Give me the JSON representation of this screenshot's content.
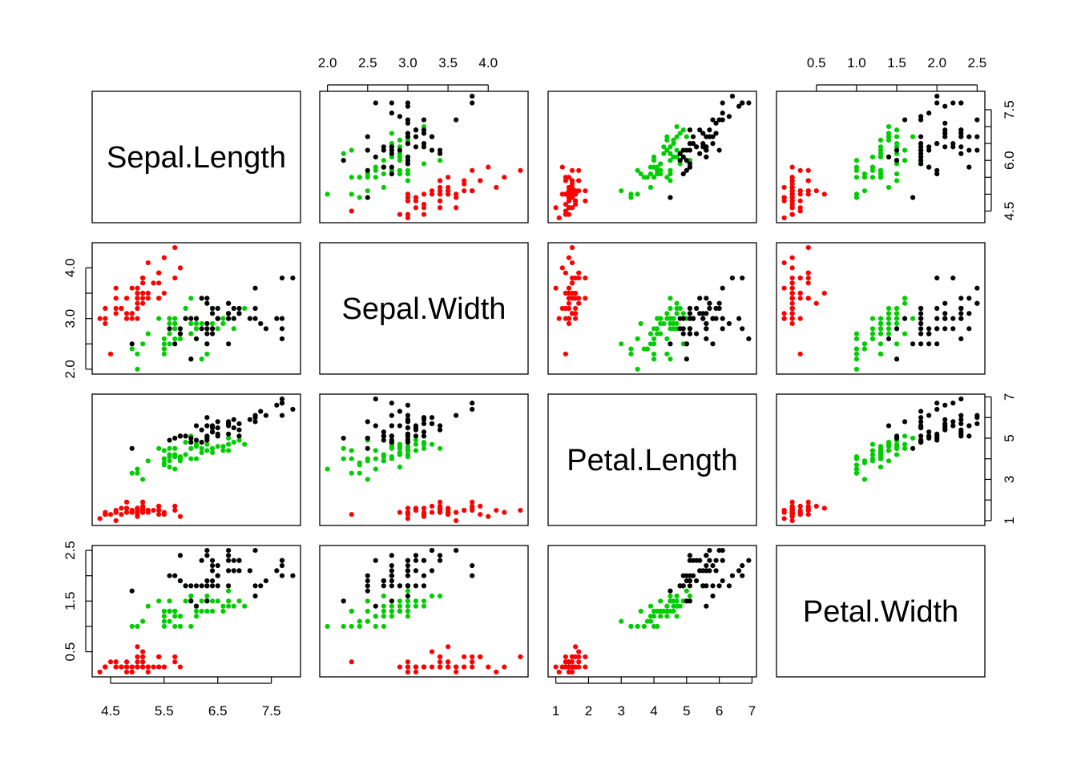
{
  "chart_data": {
    "type": "scatter",
    "subtype": "scatterplot-matrix",
    "variables": [
      "Sepal.Length",
      "Sepal.Width",
      "Petal.Length",
      "Petal.Width"
    ],
    "ranges": {
      "Sepal.Length": [
        4.3,
        7.9
      ],
      "Sepal.Width": [
        2.0,
        4.4
      ],
      "Petal.Length": [
        1.0,
        6.9
      ],
      "Petal.Width": [
        0.1,
        2.5
      ]
    },
    "ticks": {
      "Sepal.Length": [
        4.5,
        5.5,
        6.5,
        7.5
      ],
      "Sepal.Width": [
        2.0,
        2.5,
        3.0,
        3.5,
        4.0
      ],
      "Petal.Length": [
        1,
        2,
        3,
        4,
        5,
        6,
        7
      ],
      "Petal.Width": [
        0.5,
        1.0,
        1.5,
        2.0,
        2.5
      ]
    },
    "tick_labels": {
      "Sepal.Length": [
        "4.5",
        "5.5",
        "6.5",
        "7.5"
      ],
      "Sepal.Width": [
        "2.0",
        "2.5",
        "3.0",
        "3.5",
        "4.0"
      ],
      "Petal.Length": [
        "1",
        "2",
        "3",
        "4",
        "5",
        "6",
        "7"
      ],
      "Petal.Width": [
        "0.5",
        "1.0",
        "1.5",
        "2.0",
        "2.5"
      ]
    },
    "right_axis_ticks": {
      "Sepal.Length": [
        4.5,
        6.0,
        7.5
      ],
      "Sepal.Width": [
        2.0,
        3.0,
        4.0
      ],
      "Petal.Length": [
        1,
        3,
        5,
        7
      ],
      "Petal.Width": [
        0.5,
        1.5,
        2.5
      ]
    },
    "right_axis_labels": {
      "Sepal.Length": [
        "4.5",
        "6.0",
        "7.5"
      ],
      "Sepal.Width": [
        "2.0",
        "3.0",
        "4.0"
      ],
      "Petal.Length": [
        "1",
        "3",
        "5",
        "7"
      ],
      "Petal.Width": [
        "0.5",
        "1.5",
        "2.5"
      ]
    },
    "series": [
      {
        "color": "#FF0000",
        "points": [
          [
            5.1,
            3.5,
            1.4,
            0.2
          ],
          [
            4.9,
            3.0,
            1.4,
            0.2
          ],
          [
            4.7,
            3.2,
            1.3,
            0.2
          ],
          [
            4.6,
            3.1,
            1.5,
            0.2
          ],
          [
            5.0,
            3.6,
            1.4,
            0.2
          ],
          [
            5.4,
            3.9,
            1.7,
            0.4
          ],
          [
            4.6,
            3.4,
            1.4,
            0.3
          ],
          [
            5.0,
            3.4,
            1.5,
            0.2
          ],
          [
            4.4,
            2.9,
            1.4,
            0.2
          ],
          [
            4.9,
            3.1,
            1.5,
            0.1
          ],
          [
            5.4,
            3.7,
            1.5,
            0.2
          ],
          [
            4.8,
            3.4,
            1.6,
            0.2
          ],
          [
            4.8,
            3.0,
            1.4,
            0.1
          ],
          [
            4.3,
            3.0,
            1.1,
            0.1
          ],
          [
            5.8,
            4.0,
            1.2,
            0.2
          ],
          [
            5.7,
            4.4,
            1.5,
            0.4
          ],
          [
            5.4,
            3.9,
            1.3,
            0.4
          ],
          [
            5.1,
            3.5,
            1.4,
            0.3
          ],
          [
            5.7,
            3.8,
            1.7,
            0.3
          ],
          [
            5.1,
            3.8,
            1.5,
            0.3
          ],
          [
            5.4,
            3.4,
            1.7,
            0.2
          ],
          [
            5.1,
            3.7,
            1.5,
            0.4
          ],
          [
            4.6,
            3.6,
            1.0,
            0.2
          ],
          [
            5.1,
            3.3,
            1.7,
            0.5
          ],
          [
            4.8,
            3.4,
            1.9,
            0.2
          ],
          [
            5.0,
            3.0,
            1.6,
            0.2
          ],
          [
            5.0,
            3.4,
            1.6,
            0.4
          ],
          [
            5.2,
            3.5,
            1.5,
            0.2
          ],
          [
            5.2,
            3.4,
            1.4,
            0.2
          ],
          [
            4.7,
            3.2,
            1.6,
            0.2
          ],
          [
            4.8,
            3.1,
            1.6,
            0.2
          ],
          [
            5.4,
            3.4,
            1.5,
            0.4
          ],
          [
            5.2,
            4.1,
            1.5,
            0.1
          ],
          [
            5.5,
            4.2,
            1.4,
            0.2
          ],
          [
            4.9,
            3.1,
            1.5,
            0.2
          ],
          [
            5.0,
            3.2,
            1.2,
            0.2
          ],
          [
            5.5,
            3.5,
            1.3,
            0.2
          ],
          [
            4.9,
            3.6,
            1.4,
            0.1
          ],
          [
            4.4,
            3.0,
            1.3,
            0.2
          ],
          [
            5.1,
            3.4,
            1.5,
            0.2
          ],
          [
            5.0,
            3.5,
            1.3,
            0.3
          ],
          [
            4.5,
            2.3,
            1.3,
            0.3
          ],
          [
            4.4,
            3.2,
            1.3,
            0.2
          ],
          [
            5.0,
            3.5,
            1.6,
            0.6
          ],
          [
            5.1,
            3.8,
            1.9,
            0.4
          ],
          [
            4.8,
            3.0,
            1.4,
            0.3
          ],
          [
            5.1,
            3.8,
            1.6,
            0.2
          ],
          [
            4.6,
            3.2,
            1.4,
            0.2
          ],
          [
            5.3,
            3.7,
            1.5,
            0.2
          ],
          [
            5.0,
            3.3,
            1.4,
            0.2
          ]
        ]
      },
      {
        "color": "#00CD00",
        "points": [
          [
            7.0,
            3.2,
            4.7,
            1.4
          ],
          [
            6.4,
            3.2,
            4.5,
            1.5
          ],
          [
            6.9,
            3.1,
            4.9,
            1.5
          ],
          [
            5.5,
            2.3,
            4.0,
            1.3
          ],
          [
            6.5,
            2.8,
            4.6,
            1.5
          ],
          [
            5.7,
            2.8,
            4.5,
            1.3
          ],
          [
            6.3,
            3.3,
            4.7,
            1.6
          ],
          [
            4.9,
            2.4,
            3.3,
            1.0
          ],
          [
            6.6,
            2.9,
            4.6,
            1.3
          ],
          [
            5.2,
            2.7,
            3.9,
            1.4
          ],
          [
            5.0,
            2.0,
            3.5,
            1.0
          ],
          [
            5.9,
            3.0,
            4.2,
            1.5
          ],
          [
            6.0,
            2.2,
            4.0,
            1.0
          ],
          [
            6.1,
            2.9,
            4.7,
            1.4
          ],
          [
            5.6,
            2.9,
            3.6,
            1.3
          ],
          [
            6.7,
            3.1,
            4.4,
            1.4
          ],
          [
            5.6,
            3.0,
            4.5,
            1.5
          ],
          [
            5.8,
            2.7,
            4.1,
            1.0
          ],
          [
            6.2,
            2.2,
            4.5,
            1.5
          ],
          [
            5.6,
            2.5,
            3.9,
            1.1
          ],
          [
            5.9,
            3.2,
            4.8,
            1.8
          ],
          [
            6.1,
            2.8,
            4.0,
            1.3
          ],
          [
            6.3,
            2.5,
            4.9,
            1.5
          ],
          [
            6.1,
            2.8,
            4.7,
            1.2
          ],
          [
            6.4,
            2.9,
            4.3,
            1.3
          ],
          [
            6.6,
            3.0,
            4.4,
            1.4
          ],
          [
            6.8,
            2.8,
            4.8,
            1.4
          ],
          [
            6.7,
            3.0,
            5.0,
            1.7
          ],
          [
            6.0,
            2.9,
            4.5,
            1.5
          ],
          [
            5.7,
            2.6,
            3.5,
            1.0
          ],
          [
            5.5,
            2.4,
            3.8,
            1.1
          ],
          [
            5.5,
            2.4,
            3.7,
            1.0
          ],
          [
            5.8,
            2.7,
            3.9,
            1.2
          ],
          [
            6.0,
            2.7,
            5.1,
            1.6
          ],
          [
            5.4,
            3.0,
            4.5,
            1.5
          ],
          [
            6.0,
            3.4,
            4.5,
            1.6
          ],
          [
            6.7,
            3.1,
            4.7,
            1.5
          ],
          [
            6.3,
            2.3,
            4.4,
            1.3
          ],
          [
            5.6,
            3.0,
            4.1,
            1.3
          ],
          [
            5.5,
            2.5,
            4.0,
            1.3
          ],
          [
            5.5,
            2.6,
            4.4,
            1.2
          ],
          [
            6.1,
            3.0,
            4.6,
            1.4
          ],
          [
            5.8,
            2.6,
            4.0,
            1.2
          ],
          [
            5.0,
            2.3,
            3.3,
            1.0
          ],
          [
            5.6,
            2.7,
            4.2,
            1.3
          ],
          [
            5.7,
            3.0,
            4.2,
            1.2
          ],
          [
            5.7,
            2.9,
            4.2,
            1.3
          ],
          [
            6.2,
            2.9,
            4.3,
            1.3
          ],
          [
            5.1,
            2.5,
            3.0,
            1.1
          ],
          [
            5.7,
            2.8,
            4.1,
            1.3
          ]
        ]
      },
      {
        "color": "#000000",
        "points": [
          [
            6.3,
            3.3,
            6.0,
            2.5
          ],
          [
            5.8,
            2.7,
            5.1,
            1.9
          ],
          [
            7.1,
            3.0,
            5.9,
            2.1
          ],
          [
            6.3,
            2.9,
            5.6,
            1.8
          ],
          [
            6.5,
            3.0,
            5.8,
            2.2
          ],
          [
            7.6,
            3.0,
            6.6,
            2.1
          ],
          [
            4.9,
            2.5,
            4.5,
            1.7
          ],
          [
            7.3,
            2.9,
            6.3,
            1.8
          ],
          [
            6.7,
            2.5,
            5.8,
            1.8
          ],
          [
            7.2,
            3.6,
            6.1,
            2.5
          ],
          [
            6.5,
            3.2,
            5.1,
            2.0
          ],
          [
            6.4,
            2.7,
            5.3,
            1.9
          ],
          [
            6.8,
            3.0,
            5.5,
            2.1
          ],
          [
            5.7,
            2.5,
            5.0,
            2.0
          ],
          [
            5.8,
            2.8,
            5.1,
            2.4
          ],
          [
            6.4,
            3.2,
            5.3,
            2.3
          ],
          [
            6.5,
            3.0,
            5.5,
            1.8
          ],
          [
            7.7,
            3.8,
            6.7,
            2.2
          ],
          [
            7.7,
            2.6,
            6.9,
            2.3
          ],
          [
            6.0,
            2.2,
            5.0,
            1.5
          ],
          [
            6.9,
            3.2,
            5.7,
            2.3
          ],
          [
            5.6,
            2.8,
            4.9,
            2.0
          ],
          [
            7.7,
            2.8,
            6.7,
            2.0
          ],
          [
            6.3,
            2.7,
            4.9,
            1.8
          ],
          [
            6.7,
            3.3,
            5.7,
            2.1
          ],
          [
            7.2,
            3.2,
            6.0,
            1.8
          ],
          [
            6.2,
            2.8,
            4.8,
            1.8
          ],
          [
            6.1,
            3.0,
            4.9,
            1.8
          ],
          [
            6.4,
            2.8,
            5.6,
            2.1
          ],
          [
            7.2,
            3.0,
            5.8,
            1.6
          ],
          [
            7.4,
            2.8,
            6.1,
            1.9
          ],
          [
            7.9,
            3.8,
            6.4,
            2.0
          ],
          [
            6.4,
            2.8,
            5.6,
            2.2
          ],
          [
            6.3,
            2.8,
            5.1,
            1.5
          ],
          [
            6.1,
            2.6,
            5.6,
            1.4
          ],
          [
            7.7,
            3.0,
            6.1,
            2.3
          ],
          [
            6.3,
            3.4,
            5.6,
            2.4
          ],
          [
            6.4,
            3.1,
            5.5,
            1.8
          ],
          [
            6.0,
            3.0,
            4.8,
            1.8
          ],
          [
            6.9,
            3.1,
            5.4,
            2.1
          ],
          [
            6.7,
            3.1,
            5.6,
            2.4
          ],
          [
            6.9,
            3.1,
            5.1,
            2.3
          ],
          [
            5.8,
            2.7,
            5.1,
            1.9
          ],
          [
            6.8,
            3.2,
            5.9,
            2.3
          ],
          [
            6.7,
            3.3,
            5.7,
            2.5
          ],
          [
            6.7,
            3.0,
            5.2,
            2.3
          ],
          [
            6.3,
            2.5,
            5.0,
            1.9
          ],
          [
            6.5,
            3.0,
            5.2,
            2.0
          ],
          [
            6.2,
            3.4,
            5.4,
            2.3
          ],
          [
            5.9,
            3.0,
            5.1,
            1.8
          ]
        ]
      }
    ]
  }
}
